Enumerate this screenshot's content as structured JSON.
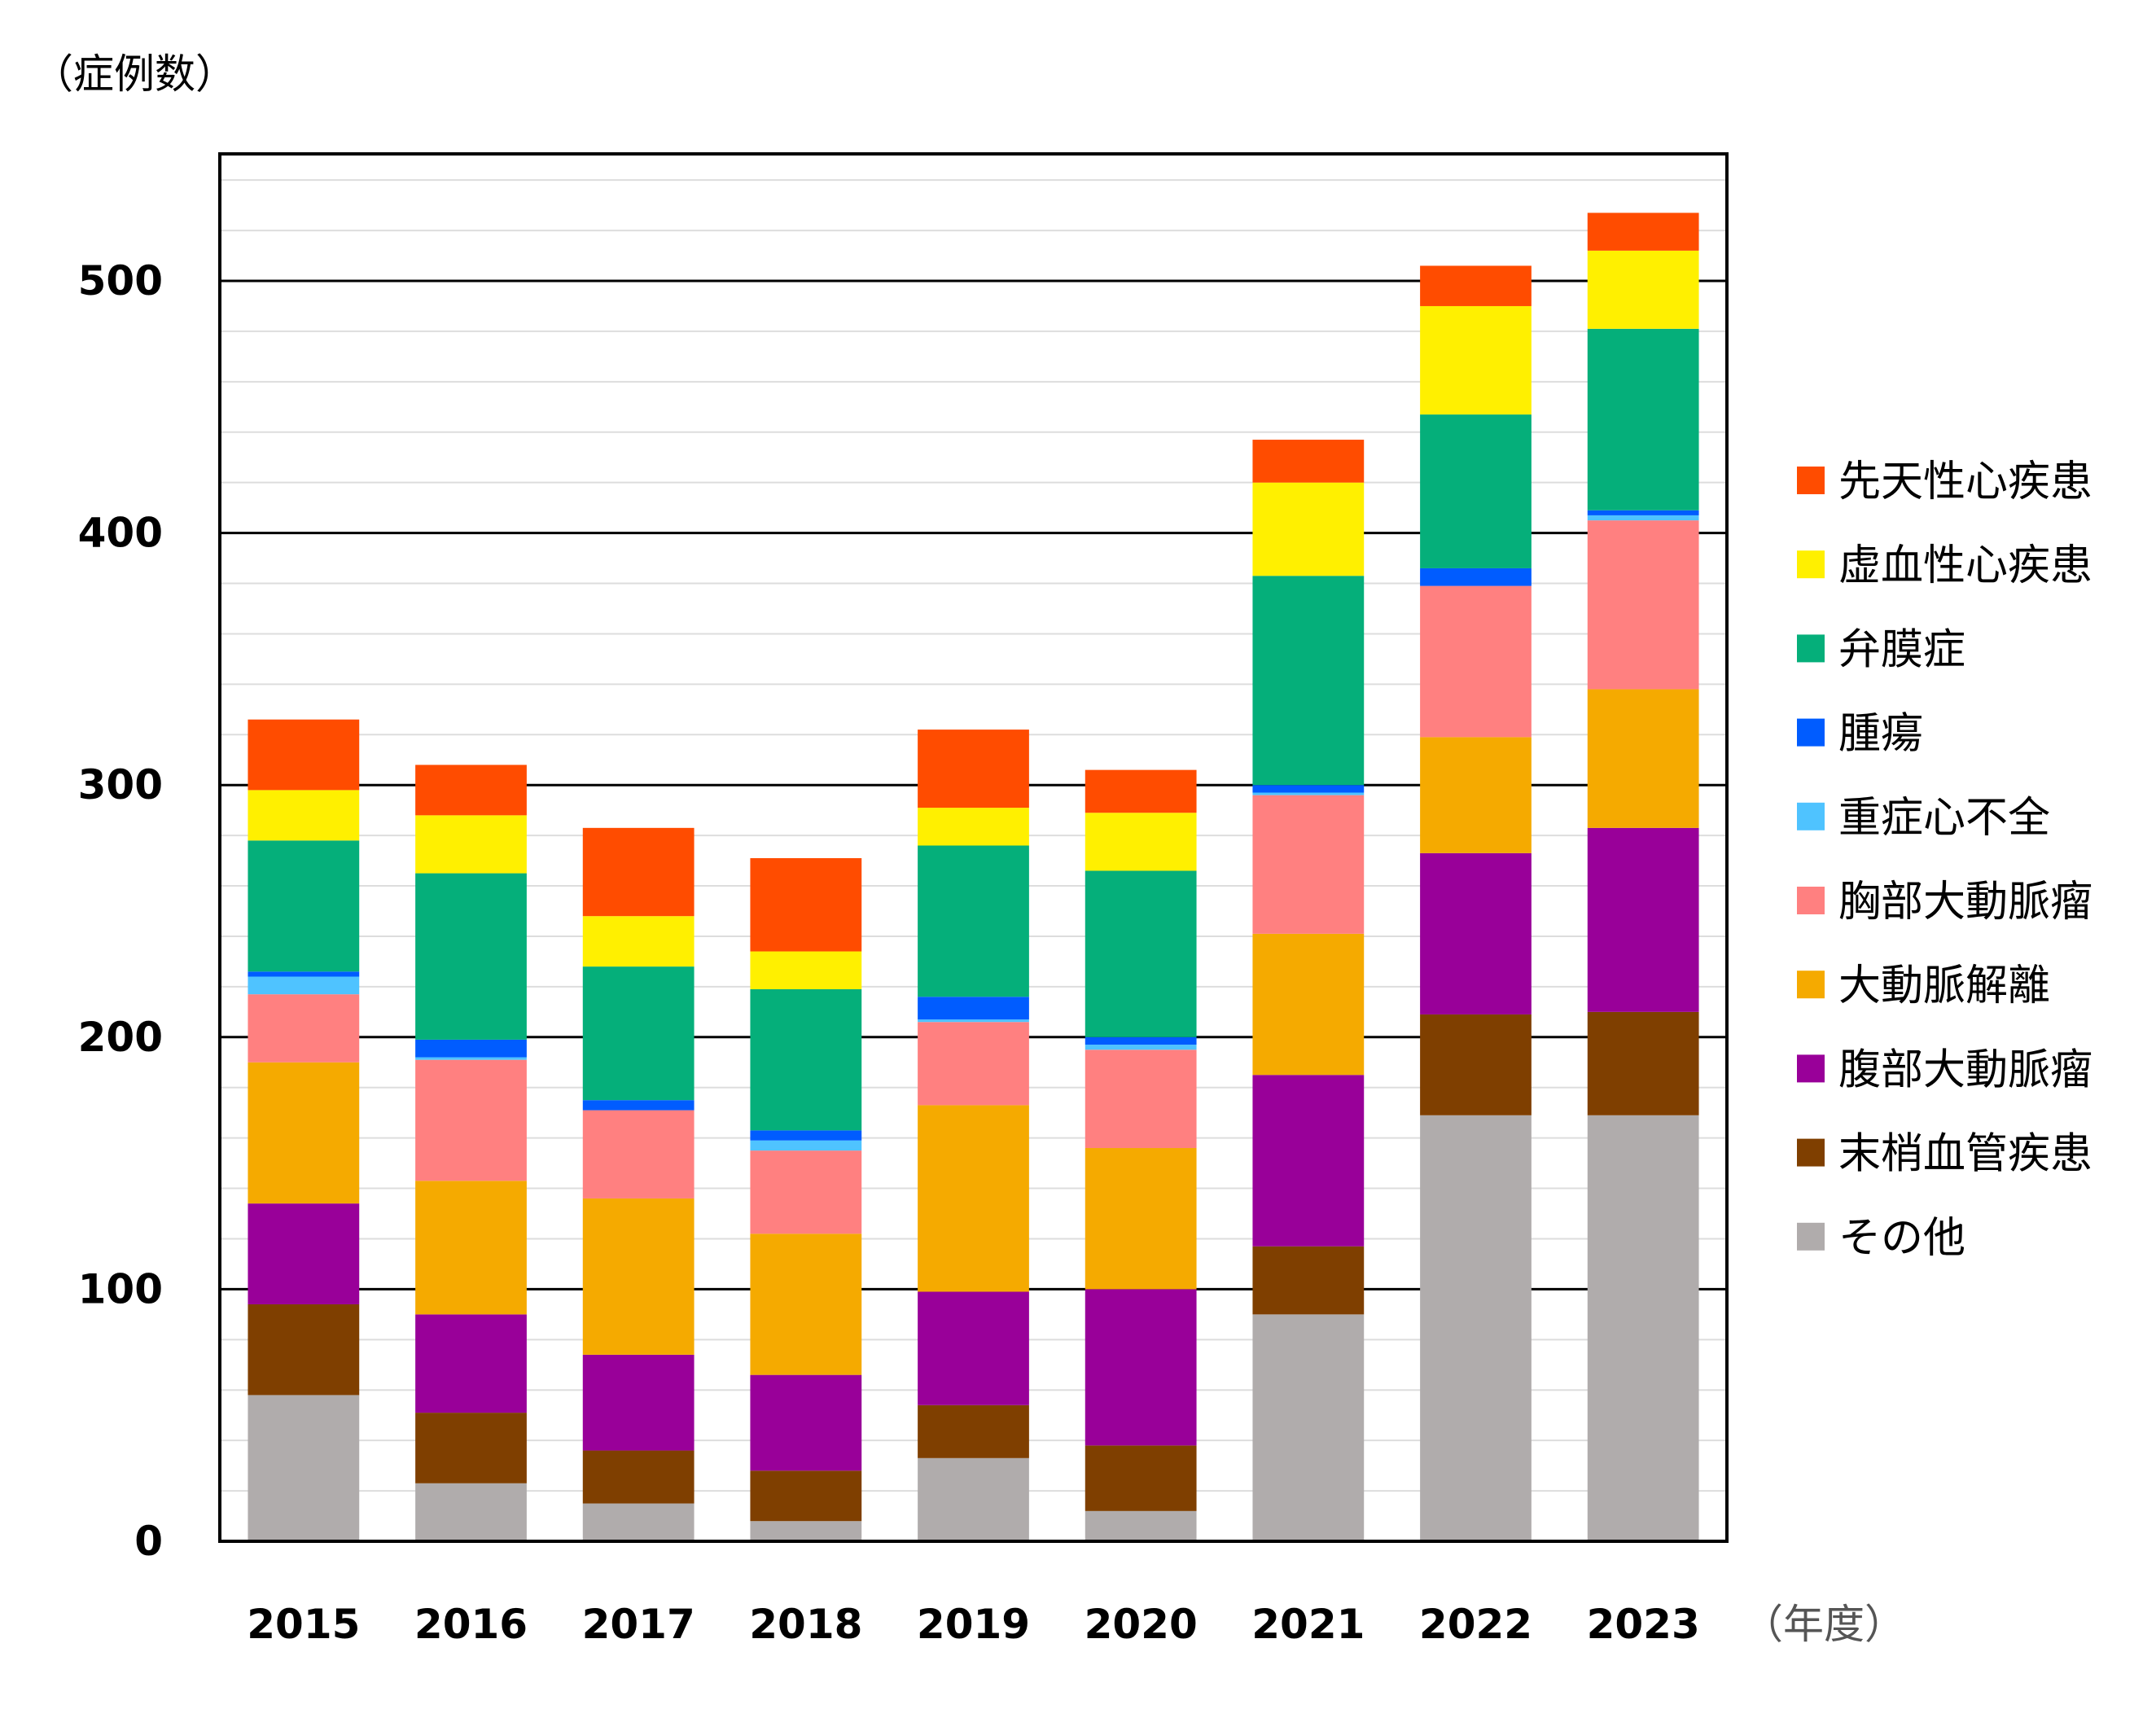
{
  "chart_data": {
    "type": "bar",
    "stacked": true,
    "title": "",
    "ylabel": "（症例数）",
    "xlabel": "（年度）",
    "ylim": [
      0,
      550
    ],
    "yticks": [
      0,
      100,
      200,
      300,
      400,
      500
    ],
    "minor_grid_step": 20,
    "grid": true,
    "legend_position": "right",
    "categories": [
      "2015",
      "2016",
      "2017",
      "2018",
      "2019",
      "2020",
      "2021",
      "2022",
      "2023"
    ],
    "series": [
      {
        "name": "その他",
        "color": "#B0ACAC",
        "values": [
          58,
          23,
          15,
          8,
          33,
          12,
          90,
          169,
          169
        ]
      },
      {
        "name": "末梢血管疾患",
        "color": "#7F3F00",
        "values": [
          36,
          28,
          21,
          20,
          21,
          26,
          27,
          40,
          41
        ]
      },
      {
        "name": "腹部大動脈瘤",
        "color": "#990099",
        "values": [
          40,
          39,
          38,
          38,
          45,
          62,
          68,
          64,
          73
        ]
      },
      {
        "name": "大動脈解離",
        "color": "#F5AA00",
        "values": [
          56,
          53,
          62,
          56,
          74,
          56,
          56,
          46,
          55
        ]
      },
      {
        "name": "胸部大動脈瘤",
        "color": "#FF8080",
        "values": [
          27,
          48,
          35,
          33,
          33,
          39,
          55,
          60,
          67
        ]
      },
      {
        "name": "重症心不全",
        "color": "#4FC3FF",
        "values": [
          7,
          1,
          0,
          4,
          1,
          2,
          1,
          0,
          2
        ]
      },
      {
        "name": "腫瘍",
        "color": "#005CFF",
        "values": [
          2,
          7,
          4,
          4,
          9,
          3,
          3,
          7,
          2
        ]
      },
      {
        "name": "弁膜症",
        "color": "#05AF7A",
        "values": [
          52,
          66,
          53,
          56,
          60,
          66,
          83,
          61,
          72
        ]
      },
      {
        "name": "虚血性心疾患",
        "color": "#FFF000",
        "values": [
          20,
          23,
          20,
          15,
          15,
          23,
          37,
          43,
          31
        ]
      },
      {
        "name": "先天性心疾患",
        "color": "#FF4C00",
        "values": [
          28,
          20,
          35,
          37,
          31,
          17,
          17,
          16,
          15
        ]
      }
    ],
    "legend_order": [
      "先天性心疾患",
      "虚血性心疾患",
      "弁膜症",
      "腫瘍",
      "重症心不全",
      "胸部大動脈瘤",
      "大動脈解離",
      "腹部大動脈瘤",
      "末梢血管疾患",
      "その他"
    ]
  }
}
